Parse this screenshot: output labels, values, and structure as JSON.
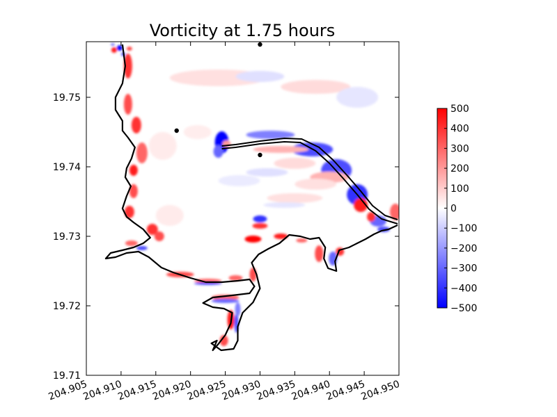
{
  "chart_data": {
    "type": "heatmap",
    "title": "Vorticity at 1.75 hours",
    "xlabel": "",
    "ylabel": "",
    "xlim": [
      204.905,
      204.95
    ],
    "ylim": [
      19.71,
      19.758
    ],
    "x_ticks": [
      {
        "value": 204.905,
        "label": "204.905"
      },
      {
        "value": 204.91,
        "label": "204.910"
      },
      {
        "value": 204.915,
        "label": "204.915"
      },
      {
        "value": 204.92,
        "label": "204.920"
      },
      {
        "value": 204.925,
        "label": "204.925"
      },
      {
        "value": 204.93,
        "label": "204.930"
      },
      {
        "value": 204.935,
        "label": "204.935"
      },
      {
        "value": 204.94,
        "label": "204.940"
      },
      {
        "value": 204.945,
        "label": "204.945"
      },
      {
        "value": 204.95,
        "label": "204.950"
      }
    ],
    "y_ticks": [
      {
        "value": 19.71,
        "label": "19.71"
      },
      {
        "value": 19.72,
        "label": "19.72"
      },
      {
        "value": 19.73,
        "label": "19.73"
      },
      {
        "value": 19.74,
        "label": "19.74"
      },
      {
        "value": 19.75,
        "label": "19.75"
      }
    ],
    "colorbar": {
      "min": -500,
      "max": 500,
      "colormap": "bwr",
      "low_color": "#0000ff",
      "mid_color": "#ffffff",
      "high_color": "#ff0000",
      "ticks": [
        {
          "value": 500,
          "label": "500"
        },
        {
          "value": 400,
          "label": "400"
        },
        {
          "value": 300,
          "label": "300"
        },
        {
          "value": 200,
          "label": "200"
        },
        {
          "value": 100,
          "label": "100"
        },
        {
          "value": 0,
          "label": "0"
        },
        {
          "value": -100,
          "label": "−100"
        },
        {
          "value": -200,
          "label": "−200"
        },
        {
          "value": -300,
          "label": "−300"
        },
        {
          "value": -400,
          "label": "−400"
        },
        {
          "value": -500,
          "label": "−500"
        }
      ]
    },
    "gauge_points": [
      {
        "x": 204.93,
        "y": 19.7576
      },
      {
        "x": 204.918,
        "y": 19.7452
      },
      {
        "x": 204.93,
        "y": 19.7417
      }
    ],
    "coastline": [
      [
        204.9102,
        19.7576
      ],
      [
        204.9106,
        19.7545
      ],
      [
        204.9102,
        19.752
      ],
      [
        204.9092,
        19.75
      ],
      [
        204.9092,
        19.7482
      ],
      [
        204.9102,
        19.7466
      ],
      [
        204.9102,
        19.7452
      ],
      [
        204.911,
        19.7442
      ],
      [
        204.912,
        19.7428
      ],
      [
        204.9115,
        19.7412
      ],
      [
        204.9108,
        19.7398
      ],
      [
        204.9106,
        19.7385
      ],
      [
        204.9114,
        19.7372
      ],
      [
        204.9108,
        19.7358
      ],
      [
        204.9102,
        19.734
      ],
      [
        204.9108,
        19.7328
      ],
      [
        204.9118,
        19.732
      ],
      [
        204.9132,
        19.731
      ],
      [
        204.9142,
        19.7298
      ],
      [
        204.9132,
        19.729
      ],
      [
        204.9118,
        19.7284
      ],
      [
        204.9102,
        19.728
      ],
      [
        204.9085,
        19.7276
      ],
      [
        204.9078,
        19.7268
      ],
      [
        204.9092,
        19.727
      ],
      [
        204.9108,
        19.7276
      ],
      [
        204.9125,
        19.7278
      ],
      [
        204.914,
        19.727
      ],
      [
        204.9158,
        19.7255
      ],
      [
        204.9175,
        19.7248
      ],
      [
        204.92,
        19.724
      ],
      [
        204.9222,
        19.7234
      ],
      [
        204.9245,
        19.7234
      ],
      [
        204.9268,
        19.7236
      ],
      [
        204.9285,
        19.7238
      ],
      [
        204.9292,
        19.7228
      ],
      [
        204.9285,
        19.7218
      ],
      [
        204.926,
        19.7215
      ],
      [
        204.9232,
        19.7212
      ],
      [
        204.9218,
        19.7204
      ],
      [
        204.9232,
        19.7198
      ],
      [
        204.9248,
        19.7196
      ],
      [
        204.926,
        19.719
      ],
      [
        204.9258,
        19.7175
      ],
      [
        204.925,
        19.7158
      ],
      [
        204.924,
        19.7145
      ],
      [
        204.9232,
        19.7136
      ],
      [
        204.9238,
        19.715
      ],
      [
        204.923,
        19.7146
      ],
      [
        204.9244,
        19.7136
      ],
      [
        204.9262,
        19.7138
      ],
      [
        204.9268,
        19.715
      ],
      [
        204.9268,
        19.717
      ],
      [
        204.9275,
        19.719
      ],
      [
        204.929,
        19.7205
      ],
      [
        204.93,
        19.7225
      ],
      [
        204.9295,
        19.7245
      ],
      [
        204.9288,
        19.7262
      ],
      [
        204.9298,
        19.7274
      ],
      [
        204.9312,
        19.7282
      ],
      [
        204.9328,
        19.729
      ],
      [
        204.9342,
        19.7302
      ],
      [
        204.9358,
        19.73
      ],
      [
        204.9372,
        19.7296
      ],
      [
        204.9385,
        19.7298
      ],
      [
        204.9394,
        19.7284
      ],
      [
        204.9392,
        19.7268
      ],
      [
        204.9398,
        19.7254
      ],
      [
        204.941,
        19.725
      ],
      [
        204.9408,
        19.7264
      ],
      [
        204.9414,
        19.728
      ],
      [
        204.9428,
        19.7284
      ],
      [
        204.944,
        19.729
      ],
      [
        204.9452,
        19.7296
      ],
      [
        204.9464,
        19.7303
      ],
      [
        204.9475,
        19.7308
      ],
      [
        204.9485,
        19.731
      ],
      [
        204.9498,
        19.7316
      ]
    ],
    "spit_upper": [
      [
        204.9245,
        19.743
      ],
      [
        204.9265,
        19.7432
      ],
      [
        204.93,
        19.7437
      ],
      [
        204.9335,
        19.7441
      ],
      [
        204.936,
        19.744
      ],
      [
        204.9385,
        19.7428
      ],
      [
        204.9405,
        19.741
      ],
      [
        204.9425,
        19.7388
      ],
      [
        204.9445,
        19.7365
      ],
      [
        204.9462,
        19.7344
      ],
      [
        204.948,
        19.733
      ],
      [
        204.9498,
        19.7324
      ]
    ],
    "spit_lower": [
      [
        204.9245,
        19.7426
      ],
      [
        204.9265,
        19.7428
      ],
      [
        204.93,
        19.7433
      ],
      [
        204.9335,
        19.7436
      ],
      [
        204.9358,
        19.7435
      ],
      [
        204.938,
        19.7423
      ],
      [
        204.94,
        19.7405
      ],
      [
        204.942,
        19.7383
      ],
      [
        204.944,
        19.736
      ],
      [
        204.9457,
        19.7339
      ],
      [
        204.9475,
        19.7325
      ],
      [
        204.9498,
        19.7318
      ]
    ],
    "vorticity_patches": [
      {
        "x": 204.9245,
        "y": 19.7435,
        "rx": 0.001,
        "ry": 0.0016,
        "value": -500
      },
      {
        "x": 204.924,
        "y": 19.7422,
        "rx": 0.0007,
        "ry": 0.0009,
        "value": -300
      },
      {
        "x": 204.9252,
        "y": 19.7433,
        "rx": 0.0006,
        "ry": 0.0005,
        "value": 200
      },
      {
        "x": 204.9315,
        "y": 19.7446,
        "rx": 0.0035,
        "ry": 0.0006,
        "value": -250
      },
      {
        "x": 204.9375,
        "y": 19.7425,
        "rx": 0.003,
        "ry": 0.001,
        "value": -350
      },
      {
        "x": 204.941,
        "y": 19.7395,
        "rx": 0.0022,
        "ry": 0.0016,
        "value": -350
      },
      {
        "x": 204.944,
        "y": 19.736,
        "rx": 0.0015,
        "ry": 0.0015,
        "value": -400
      },
      {
        "x": 204.933,
        "y": 19.7425,
        "rx": 0.004,
        "ry": 0.0005,
        "value": 150
      },
      {
        "x": 204.94,
        "y": 19.7385,
        "rx": 0.0028,
        "ry": 0.0008,
        "value": 150
      },
      {
        "x": 204.9445,
        "y": 19.7345,
        "rx": 0.001,
        "ry": 0.001,
        "value": 450
      },
      {
        "x": 204.947,
        "y": 19.7322,
        "rx": 0.0012,
        "ry": 0.0008,
        "value": -300
      },
      {
        "x": 204.946,
        "y": 19.7328,
        "rx": 0.0006,
        "ry": 0.0007,
        "value": 400
      },
      {
        "x": 204.93,
        "y": 19.7325,
        "rx": 0.001,
        "ry": 0.0005,
        "value": -400
      },
      {
        "x": 204.93,
        "y": 19.7315,
        "rx": 0.0011,
        "ry": 0.0004,
        "value": 400
      },
      {
        "x": 204.929,
        "y": 19.7296,
        "rx": 0.0012,
        "ry": 0.0005,
        "value": 500
      },
      {
        "x": 204.933,
        "y": 19.73,
        "rx": 0.001,
        "ry": 0.0004,
        "value": 450
      },
      {
        "x": 204.936,
        "y": 19.7294,
        "rx": 0.0008,
        "ry": 0.0003,
        "value": 300
      },
      {
        "x": 204.9385,
        "y": 19.7275,
        "rx": 0.0006,
        "ry": 0.0012,
        "value": 350
      },
      {
        "x": 204.9405,
        "y": 19.7268,
        "rx": 0.0006,
        "ry": 0.001,
        "value": -300
      },
      {
        "x": 204.9415,
        "y": 19.7278,
        "rx": 0.0006,
        "ry": 0.0006,
        "value": 400
      },
      {
        "x": 204.9495,
        "y": 19.7335,
        "rx": 0.0008,
        "ry": 0.0012,
        "value": 300
      },
      {
        "x": 204.9478,
        "y": 19.731,
        "rx": 0.0009,
        "ry": 0.0004,
        "value": -350
      },
      {
        "x": 204.911,
        "y": 19.7545,
        "rx": 0.0006,
        "ry": 0.0018,
        "value": 400
      },
      {
        "x": 204.911,
        "y": 19.749,
        "rx": 0.0006,
        "ry": 0.0015,
        "value": 350
      },
      {
        "x": 204.9122,
        "y": 19.746,
        "rx": 0.0007,
        "ry": 0.0012,
        "value": 400
      },
      {
        "x": 204.913,
        "y": 19.742,
        "rx": 0.0008,
        "ry": 0.0015,
        "value": 300
      },
      {
        "x": 204.9118,
        "y": 19.7395,
        "rx": 0.0006,
        "ry": 0.0008,
        "value": 450
      },
      {
        "x": 204.9118,
        "y": 19.7365,
        "rx": 0.0006,
        "ry": 0.001,
        "value": 350
      },
      {
        "x": 204.9112,
        "y": 19.7335,
        "rx": 0.0007,
        "ry": 0.0009,
        "value": 400
      },
      {
        "x": 204.9145,
        "y": 19.731,
        "rx": 0.0008,
        "ry": 0.0008,
        "value": 400
      },
      {
        "x": 204.9155,
        "y": 19.73,
        "rx": 0.0007,
        "ry": 0.0007,
        "value": 350
      },
      {
        "x": 204.9115,
        "y": 19.729,
        "rx": 0.0009,
        "ry": 0.0004,
        "value": 300
      },
      {
        "x": 204.913,
        "y": 19.7283,
        "rx": 0.0008,
        "ry": 0.0003,
        "value": -350
      },
      {
        "x": 204.9185,
        "y": 19.7245,
        "rx": 0.002,
        "ry": 0.0004,
        "value": 350
      },
      {
        "x": 204.9225,
        "y": 19.7236,
        "rx": 0.002,
        "ry": 0.0003,
        "value": 300
      },
      {
        "x": 204.9225,
        "y": 19.7232,
        "rx": 0.002,
        "ry": 0.0002,
        "value": -350
      },
      {
        "x": 204.9265,
        "y": 19.724,
        "rx": 0.001,
        "ry": 0.0004,
        "value": 300
      },
      {
        "x": 204.929,
        "y": 19.7245,
        "rx": 0.0005,
        "ry": 0.001,
        "value": 350
      },
      {
        "x": 204.925,
        "y": 19.7212,
        "rx": 0.002,
        "ry": 0.0004,
        "value": 300
      },
      {
        "x": 204.925,
        "y": 19.7207,
        "rx": 0.002,
        "ry": 0.0003,
        "value": -300
      },
      {
        "x": 204.9258,
        "y": 19.718,
        "rx": 0.0005,
        "ry": 0.0014,
        "value": 450
      },
      {
        "x": 204.9266,
        "y": 19.7175,
        "rx": 0.0003,
        "ry": 0.0014,
        "value": -350
      },
      {
        "x": 204.9248,
        "y": 19.715,
        "rx": 0.0006,
        "ry": 0.0008,
        "value": 350
      },
      {
        "x": 204.9268,
        "y": 19.7195,
        "rx": 0.0004,
        "ry": 0.001,
        "value": -250
      },
      {
        "x": 204.9098,
        "y": 19.7571,
        "rx": 0.0004,
        "ry": 0.0004,
        "value": -500
      },
      {
        "x": 204.909,
        "y": 19.7568,
        "rx": 0.0004,
        "ry": 0.0004,
        "value": 450
      },
      {
        "x": 204.9103,
        "y": 19.7562,
        "rx": 0.0003,
        "ry": 0.0003,
        "value": -300
      },
      {
        "x": 204.9112,
        "y": 19.757,
        "rx": 0.0004,
        "ry": 0.0003,
        "value": 350
      },
      {
        "x": 204.9088,
        "y": 19.7576,
        "rx": 0.0003,
        "ry": 0.0002,
        "value": -250
      },
      {
        "x": 204.924,
        "y": 19.7528,
        "rx": 0.007,
        "ry": 0.0012,
        "value": 60
      },
      {
        "x": 204.93,
        "y": 19.753,
        "rx": 0.0035,
        "ry": 0.0008,
        "value": -60
      },
      {
        "x": 204.938,
        "y": 19.7515,
        "rx": 0.005,
        "ry": 0.001,
        "value": 70
      },
      {
        "x": 204.944,
        "y": 19.75,
        "rx": 0.003,
        "ry": 0.0015,
        "value": -50
      },
      {
        "x": 204.935,
        "y": 19.7405,
        "rx": 0.003,
        "ry": 0.0008,
        "value": 70
      },
      {
        "x": 204.931,
        "y": 19.7392,
        "rx": 0.003,
        "ry": 0.0006,
        "value": -60
      },
      {
        "x": 204.938,
        "y": 19.7375,
        "rx": 0.003,
        "ry": 0.0008,
        "value": 60
      },
      {
        "x": 204.916,
        "y": 19.743,
        "rx": 0.002,
        "ry": 0.002,
        "value": 40
      },
      {
        "x": 204.927,
        "y": 19.738,
        "rx": 0.003,
        "ry": 0.0008,
        "value": -40
      },
      {
        "x": 204.921,
        "y": 19.745,
        "rx": 0.002,
        "ry": 0.001,
        "value": 35
      },
      {
        "x": 204.917,
        "y": 19.733,
        "rx": 0.002,
        "ry": 0.0015,
        "value": 40
      },
      {
        "x": 204.935,
        "y": 19.7355,
        "rx": 0.004,
        "ry": 0.0007,
        "value": 60
      },
      {
        "x": 204.9335,
        "y": 19.7345,
        "rx": 0.003,
        "ry": 0.0004,
        "value": -50
      }
    ]
  }
}
